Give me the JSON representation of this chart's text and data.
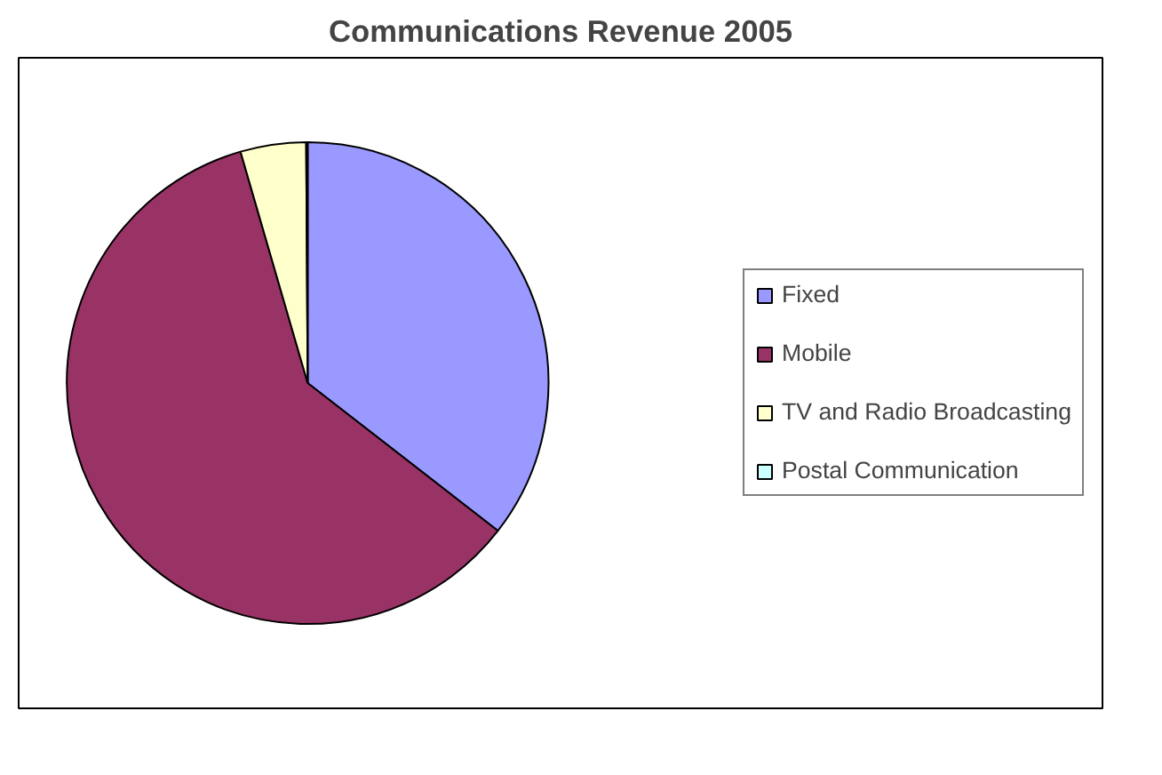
{
  "chart_data": {
    "type": "pie",
    "title": "Communications Revenue 2005",
    "categories": [
      "Fixed",
      "Mobile",
      "TV and Radio Broadcasting",
      "Postal Communication"
    ],
    "values": [
      35.5,
      60,
      4.4,
      0.1
    ],
    "colors": [
      "#9999ff",
      "#993366",
      "#ffffcc",
      "#ccffff"
    ],
    "legend": "right"
  }
}
